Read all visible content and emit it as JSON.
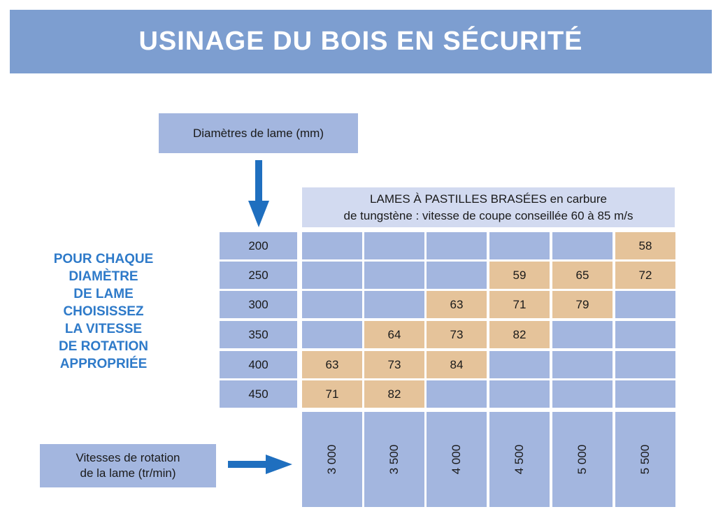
{
  "header": {
    "title": "USINAGE DU BOIS EN SÉCURITÉ"
  },
  "diameter_box": {
    "label": "Diamètres de lame (mm)"
  },
  "blades_header": {
    "line1_caps": "LAMES À PASTILLES BRASÉES",
    "line1_rest": " en carbure",
    "line2": "de tungstène : vitesse de coupe conseillée 60 à 85 m/s"
  },
  "side_text": {
    "lines": [
      "POUR CHAQUE",
      "DIAMÈTRE",
      "DE LAME",
      "CHOISISSEZ",
      "LA VITESSE",
      "DE ROTATION",
      "APPROPRIÉE"
    ]
  },
  "speed_box": {
    "line1": "Vitesses de rotation",
    "line2": "de la lame (tr/min)"
  },
  "table": {
    "diameters": [
      "200",
      "250",
      "300",
      "350",
      "400",
      "450"
    ],
    "speeds": [
      "3 000",
      "3 500",
      "4 000",
      "4 500",
      "5 000",
      "5 500"
    ],
    "rows": [
      [
        "",
        "",
        "",
        "",
        "",
        "58"
      ],
      [
        "",
        "",
        "",
        "59",
        "65",
        "72"
      ],
      [
        "",
        "",
        "63",
        "71",
        "79",
        ""
      ],
      [
        "",
        "64",
        "73",
        "82",
        "",
        ""
      ],
      [
        "63",
        "73",
        "84",
        "",
        "",
        ""
      ],
      [
        "71",
        "82",
        "",
        "",
        "",
        ""
      ]
    ]
  },
  "colors": {
    "banner": "#7d9ed0",
    "cell": "#a3b6df",
    "highlight": "#e5c39a",
    "header_box": "#d2daf0",
    "side_text": "#2e7ac9",
    "arrow": "#1f6fbf"
  }
}
